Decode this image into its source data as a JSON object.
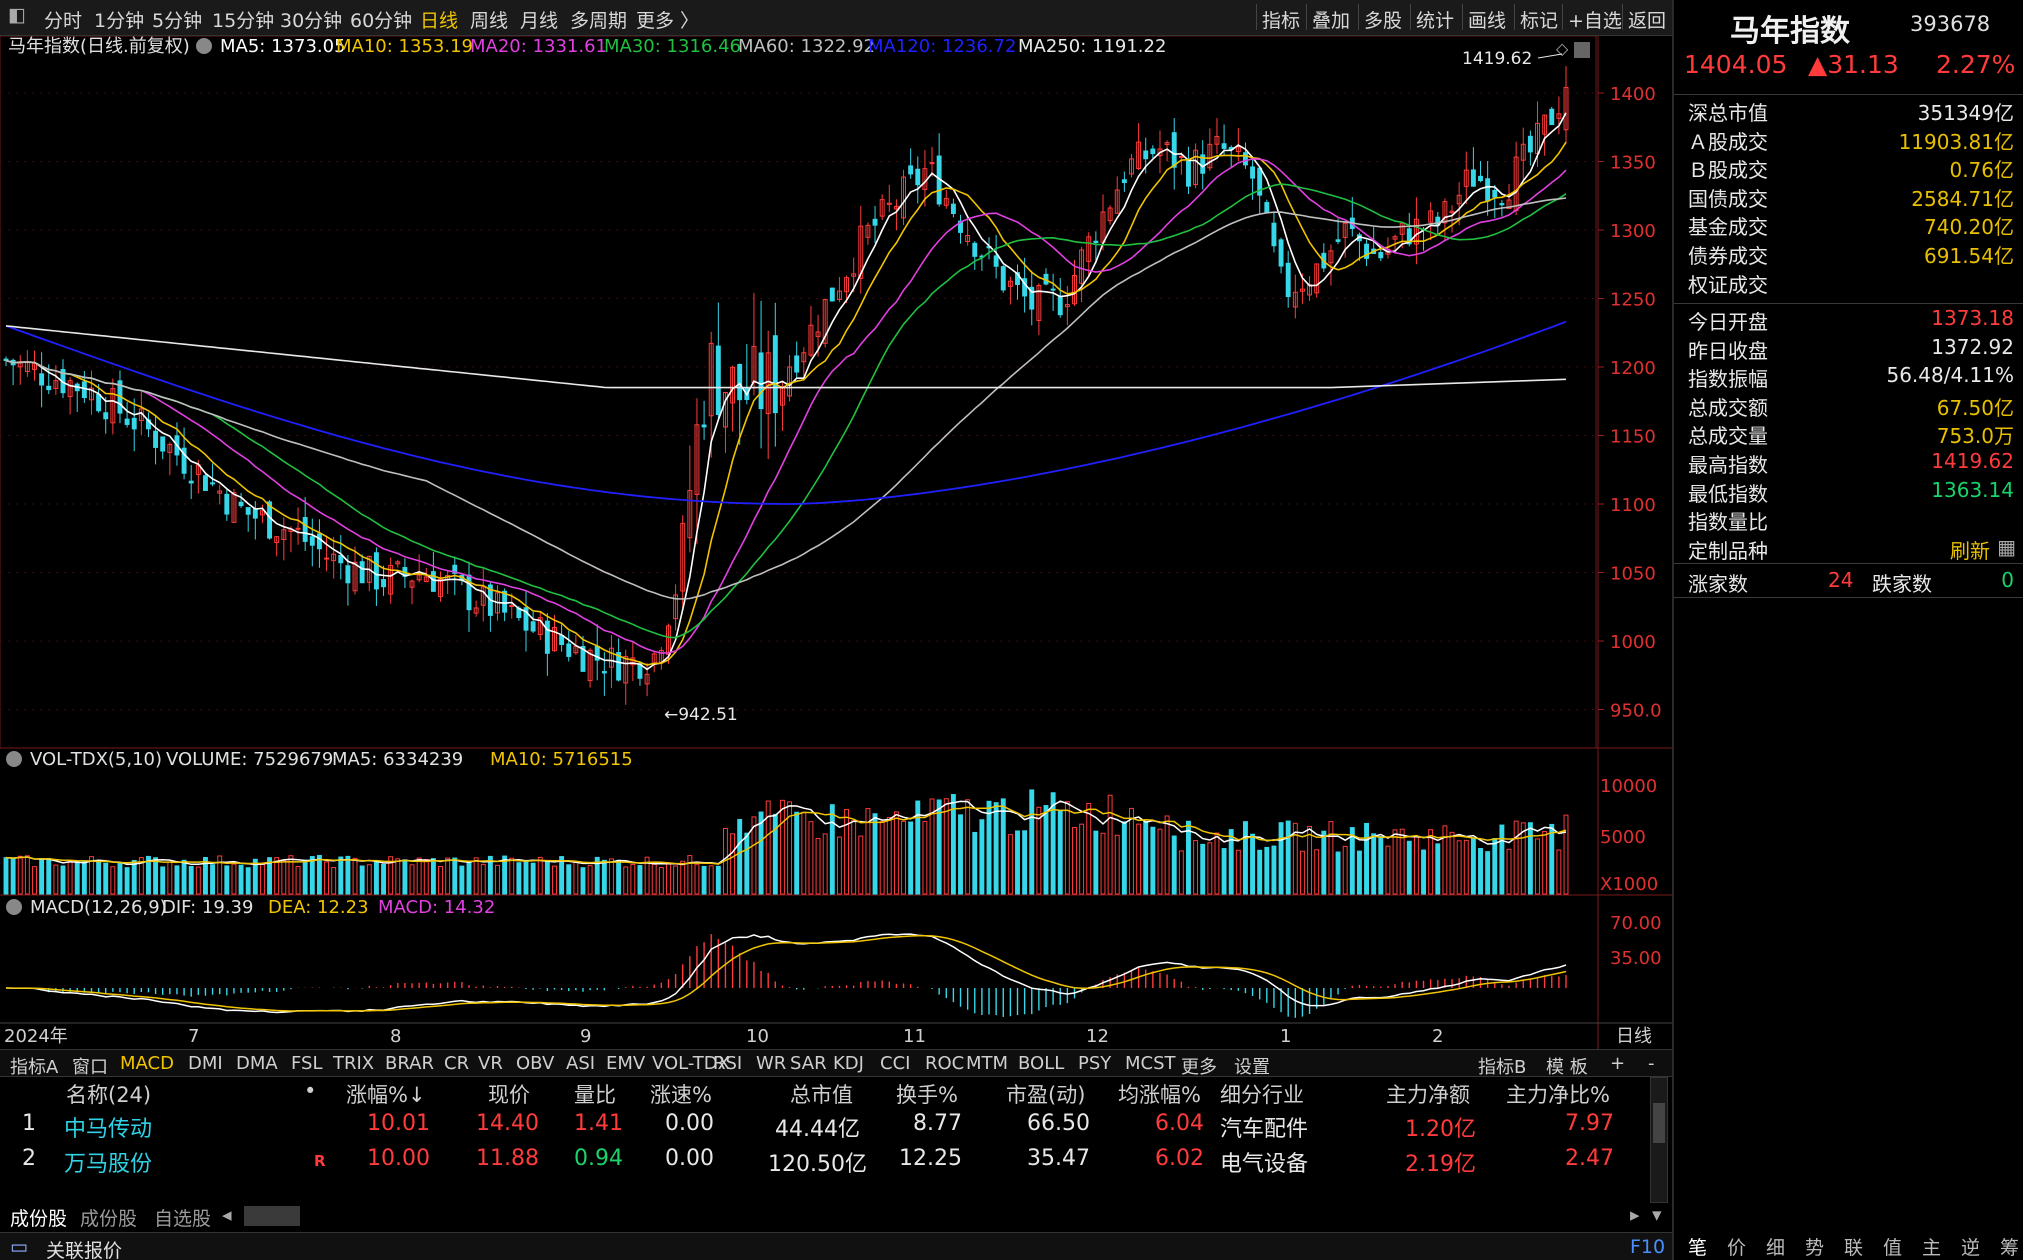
{
  "topbar": {
    "periods": [
      "分时",
      "1分钟",
      "5分钟",
      "15分钟",
      "30分钟",
      "60分钟",
      "日线",
      "周线",
      "月线",
      "多周期",
      "更多 〉"
    ],
    "active_period": "日线",
    "tools": [
      "指标",
      "叠加",
      "多股",
      "统计",
      "画线",
      "标记",
      "+自选",
      "返回"
    ]
  },
  "chart": {
    "title": "马年指数(日线.前复权)",
    "ma_legend": [
      {
        "label": "MA5: 1373.05",
        "color": "#ffffff"
      },
      {
        "label": "MA10: 1353.19",
        "color": "#f0c400"
      },
      {
        "label": "MA20: 1331.61",
        "color": "#e040e0"
      },
      {
        "label": "MA30: 1316.46",
        "color": "#20c040"
      },
      {
        "label": "MA60: 1322.92",
        "color": "#bfbfbf"
      },
      {
        "label": "MA120: 1236.72",
        "color": "#2020ff"
      },
      {
        "label": "MA250: 1191.22",
        "color": "#e8e8e8"
      }
    ],
    "high_marker": "1419.62",
    "low_marker": "←942.51",
    "y_ticks": [
      "1400",
      "1350",
      "1300",
      "1250",
      "1200",
      "1150",
      "1100",
      "1050",
      "1000",
      "950.0"
    ],
    "x_labels": [
      "2024年",
      "7",
      "8",
      "9",
      "10",
      "11",
      "12",
      "1",
      "2",
      "日线"
    ]
  },
  "volume": {
    "legend": [
      {
        "label": "VOL-TDX(5,10)",
        "color": "#e0e0e0"
      },
      {
        "label": "VOLUME: 7529679",
        "color": "#e0e0e0"
      },
      {
        "label": "MA5: 6334239",
        "color": "#e0e0e0"
      },
      {
        "label": "MA10: 5716515",
        "color": "#f0c400"
      }
    ],
    "y_ticks": [
      "10000",
      "5000",
      "X1000"
    ]
  },
  "macd": {
    "legend": [
      {
        "label": "MACD(12,26,9)",
        "color": "#e0e0e0"
      },
      {
        "label": "DIF: 19.39",
        "color": "#e0e0e0"
      },
      {
        "label": "DEA: 12.23",
        "color": "#f0c400"
      },
      {
        "label": "MACD: 14.32",
        "color": "#e040e0"
      }
    ],
    "y_ticks": [
      "70.00",
      "35.00"
    ]
  },
  "right_panel": {
    "title": "马年指数",
    "code": "393678",
    "price": "1404.05",
    "change": "▲31.13",
    "change_pct": "2.27%",
    "rows_a": [
      {
        "k": "深总市值",
        "v": "351349亿",
        "c": "white"
      },
      {
        "k": "Ａ股成交",
        "v": "11903.81亿",
        "c": "yellow"
      },
      {
        "k": "Ｂ股成交",
        "v": "0.76亿",
        "c": "yellow"
      },
      {
        "k": "国债成交",
        "v": "2584.71亿",
        "c": "yellow"
      },
      {
        "k": "基金成交",
        "v": "740.20亿",
        "c": "yellow"
      },
      {
        "k": "债券成交",
        "v": "691.54亿",
        "c": "yellow"
      },
      {
        "k": "权证成交",
        "v": "",
        "c": "yellow"
      }
    ],
    "rows_b": [
      {
        "k": "今日开盘",
        "v": "1373.18",
        "c": "red"
      },
      {
        "k": "昨日收盘",
        "v": "1372.92",
        "c": "white"
      },
      {
        "k": "指数振幅",
        "v": "56.48/4.11%",
        "c": "white"
      },
      {
        "k": "总成交额",
        "v": "67.50亿",
        "c": "yellow"
      },
      {
        "k": "总成交量",
        "v": "753.0万",
        "c": "yellow"
      },
      {
        "k": "最高指数",
        "v": "1419.62",
        "c": "red"
      },
      {
        "k": "最低指数",
        "v": "1363.14",
        "c": "green"
      },
      {
        "k": "指数量比",
        "v": "",
        "c": "white"
      },
      {
        "k": "定制品种",
        "v": "刷新",
        "c": "yellow"
      }
    ],
    "up_label": "涨家数",
    "up_value": "24",
    "down_label": "跌家数",
    "down_value": "0",
    "bottom_tabs": [
      "笔",
      "价",
      "细",
      "势",
      "联",
      "值",
      "主",
      "逆",
      "筹"
    ]
  },
  "indicator_tabs": [
    "指标A",
    "窗口",
    "MACD",
    "DMI",
    "DMA",
    "FSL",
    "TRIX",
    "BRAR",
    "CR",
    "VR",
    "OBV",
    "ASI",
    "EMV",
    "VOL-TDX",
    "RSI",
    "WR",
    "SAR",
    "KDJ",
    "CCI",
    "ROC",
    "MTM",
    "BOLL",
    "PSY",
    "MCST",
    "更多",
    "设置"
  ],
  "indicator_tabs_right": [
    "指标B",
    "模 板",
    "+",
    "-"
  ],
  "active_indicator": "MACD",
  "table": {
    "headers": [
      "名称(24)",
      "•",
      "涨幅%↓",
      "现价",
      "量比",
      "涨速%",
      "总市值",
      "换手%",
      "市盈(动)",
      "均涨幅%",
      "细分行业",
      "主力净额",
      "主力净比%"
    ],
    "rows": [
      {
        "idx": "1",
        "name": "中马传动",
        "flag": "",
        "pct": "10.01",
        "price": "14.40",
        "vol_ratio": "1.41",
        "speed": "0.00",
        "mcap": "44.44亿",
        "turnover": "8.77",
        "pe": "66.50",
        "avg": "6.04",
        "industry": "汽车配件",
        "net": "1.20亿",
        "net_ratio": "7.97"
      },
      {
        "idx": "2",
        "name": "万马股份",
        "flag": "R",
        "pct": "10.00",
        "price": "11.88",
        "vol_ratio": "0.94",
        "speed": "0.00",
        "mcap": "120.50亿",
        "turnover": "12.25",
        "pe": "35.47",
        "avg": "6.02",
        "industry": "电气设备",
        "net": "2.19亿",
        "net_ratio": "2.47"
      }
    ]
  },
  "bottom_tabs": [
    "成份股",
    "成份股",
    "自选股"
  ],
  "status": {
    "left": "关联报价",
    "right": "F10"
  }
}
